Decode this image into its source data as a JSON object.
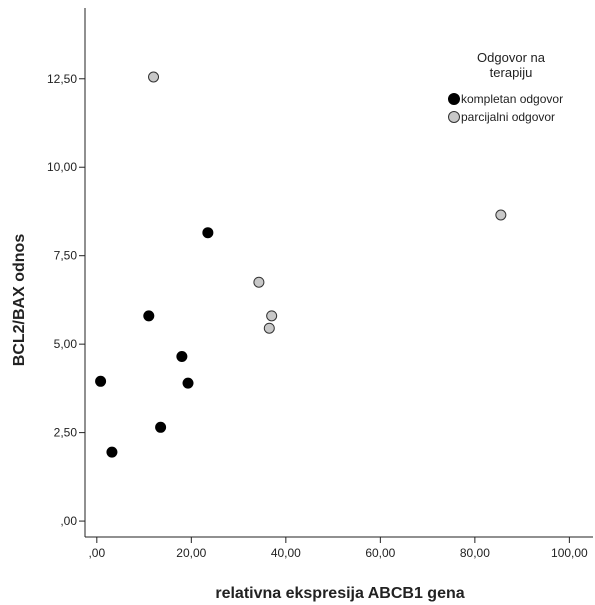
{
  "chart_data": {
    "type": "scatter",
    "xlabel": "relativna ekspresija ABCB1 gena",
    "ylabel": "BCL2/BAX odnos",
    "xlim": [
      -2.5,
      105
    ],
    "ylim": [
      -0.45,
      14.5
    ],
    "x_ticks": [
      0,
      20,
      40,
      60,
      80,
      100
    ],
    "x_tick_labels": [
      ",00",
      "20,00",
      "40,00",
      "60,00",
      "80,00",
      "100,00"
    ],
    "y_ticks": [
      0,
      2.5,
      5,
      7.5,
      10,
      12.5
    ],
    "y_tick_labels": [
      ",00",
      "2,50",
      "5,00",
      "7,50",
      "10,00",
      "12,50"
    ],
    "grid": false,
    "legend": {
      "title_lines": [
        "Odgovor na",
        "terapiju"
      ],
      "placement": "top-right"
    },
    "series": [
      {
        "name": "kompletan odgovor",
        "color": "#000000",
        "edge": "#000000",
        "points": [
          {
            "x": 0.8,
            "y": 3.95
          },
          {
            "x": 3.2,
            "y": 1.95
          },
          {
            "x": 11.0,
            "y": 5.8
          },
          {
            "x": 13.5,
            "y": 2.65
          },
          {
            "x": 18.0,
            "y": 4.65
          },
          {
            "x": 19.3,
            "y": 3.9
          },
          {
            "x": 23.5,
            "y": 8.15
          }
        ]
      },
      {
        "name": "parcijalni odgovor",
        "color": "#c8c8c8",
        "edge": "#333333",
        "points": [
          {
            "x": 12.0,
            "y": 12.55
          },
          {
            "x": 34.3,
            "y": 6.75
          },
          {
            "x": 37.0,
            "y": 5.8
          },
          {
            "x": 36.5,
            "y": 5.45
          },
          {
            "x": 85.5,
            "y": 8.65
          }
        ]
      }
    ]
  }
}
